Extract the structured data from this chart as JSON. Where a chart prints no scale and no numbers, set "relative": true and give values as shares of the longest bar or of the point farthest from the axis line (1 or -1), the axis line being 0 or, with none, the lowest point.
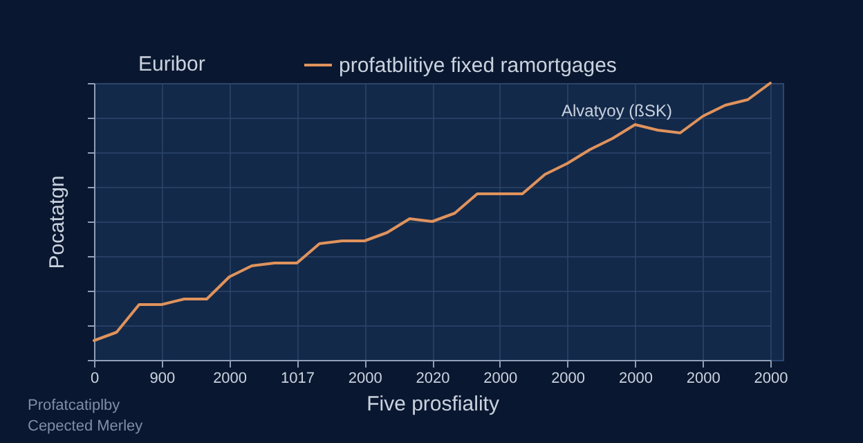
{
  "chart_data": {
    "type": "line",
    "relative": true,
    "legend_title": "Euribor",
    "xlabel": "Five prosfiality",
    "ylabel": "Pocatatgn",
    "categories": [
      "0",
      null,
      null,
      "900",
      null,
      null,
      "2000",
      null,
      null,
      "1017",
      null,
      null,
      "2000",
      null,
      null,
      "2020",
      null,
      null,
      "2000",
      null,
      null,
      "2000",
      null,
      null,
      "2000",
      null,
      null,
      "2000",
      null,
      null,
      "2000"
    ],
    "series": [
      {
        "name": "profatblitiye fixed ramortgages",
        "color": "#e0935c",
        "values": [
          0.07,
          0.1,
          0.2,
          0.2,
          0.22,
          0.22,
          0.3,
          0.34,
          0.35,
          0.35,
          0.42,
          0.43,
          0.43,
          0.46,
          0.51,
          0.5,
          0.53,
          0.6,
          0.6,
          0.6,
          0.67,
          0.71,
          0.76,
          0.8,
          0.85,
          0.83,
          0.82,
          0.88,
          0.92,
          0.94,
          1
        ]
      }
    ],
    "annotations": [
      "Alvatyoy (ßSK)",
      "Profatcatiplby",
      "Cepected Merley"
    ],
    "grid": true,
    "legend": "top",
    "line_style": "solid",
    "marker": "none"
  }
}
